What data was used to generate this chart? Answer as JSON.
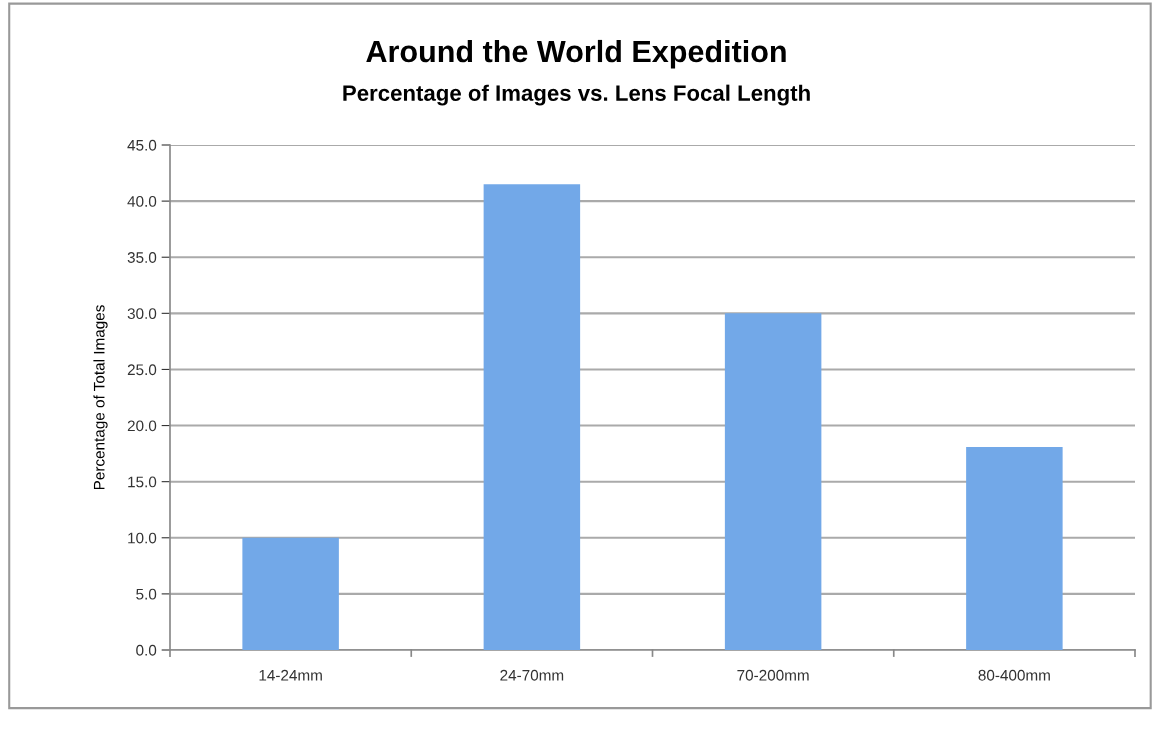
{
  "chart_data": {
    "type": "bar",
    "title": "Around the World Expedition",
    "subtitle": "Percentage of Images vs. Lens Focal Length",
    "ylabel": "Percentage of Total Images",
    "categories": [
      "14-24mm",
      "24-70mm",
      "70-200mm",
      "80-400mm"
    ],
    "values": [
      10.0,
      41.5,
      30.0,
      18.1
    ],
    "color": "#72a8e8",
    "ylim": [
      0,
      45
    ],
    "yticks": [
      {
        "value": 0,
        "label": "0.0"
      },
      {
        "value": 5,
        "label": "5.0"
      },
      {
        "value": 10,
        "label": "10.0"
      },
      {
        "value": 15,
        "label": "15.0"
      },
      {
        "value": 20,
        "label": "20.0"
      },
      {
        "value": 25,
        "label": "25.0"
      },
      {
        "value": 30,
        "label": "30.0"
      },
      {
        "value": 35,
        "label": "35.0"
      },
      {
        "value": 40,
        "label": "40.0"
      },
      {
        "value": 45,
        "label": "45.0"
      }
    ],
    "grid": "y",
    "legend": false
  }
}
